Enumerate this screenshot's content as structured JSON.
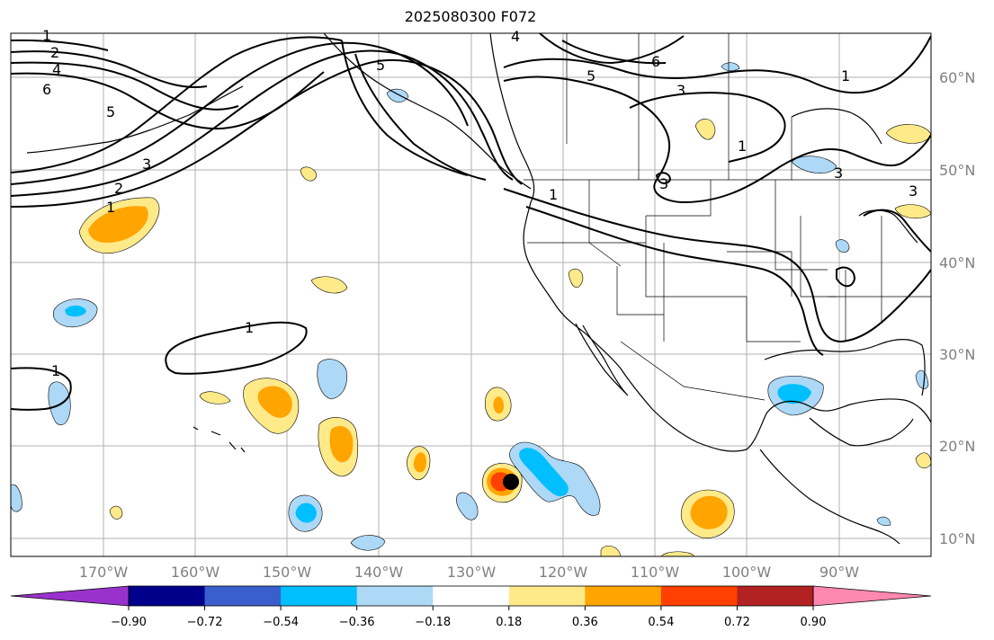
{
  "title": "2025080300 F072",
  "latitude_labels": [
    "60°N",
    "50°N",
    "40°N",
    "30°N",
    "20°N",
    "10°N"
  ],
  "longitude_labels": [
    "170°W",
    "160°W",
    "150°W",
    "140°W",
    "130°W",
    "120°W",
    "110°W",
    "100°W",
    "90°W"
  ],
  "colorbar": {
    "tick_labels": [
      "−0.90",
      "−0.72",
      "−0.54",
      "−0.36",
      "−0.18",
      "0.18",
      "0.36",
      "0.54",
      "0.72",
      "0.90"
    ],
    "colors": [
      "#9932cc",
      "#00008b",
      "#3a5fcd",
      "#00bfff",
      "#add8f6",
      "#ffffff",
      "#ffea8a",
      "#ffa500",
      "#ff4000",
      "#b22222",
      "#ff88b0"
    ]
  },
  "contour_labels": [
    "1",
    "2",
    "4",
    "6",
    "5",
    "3",
    "1",
    "2",
    "5",
    "4",
    "5",
    "6",
    "3",
    "1",
    "1",
    "3",
    "3",
    "1",
    "1",
    "1",
    "3"
  ],
  "colors": {
    "land_outline": "#000000",
    "grid": "#b0b0b0",
    "marker": "#000000",
    "neg_light": "#add8f6",
    "neg_mid": "#00bfff",
    "pos_light": "#ffea8a",
    "pos_mid": "#ffa500",
    "pos_strong": "#ff4000"
  },
  "marker_name": "storm-center-dot"
}
